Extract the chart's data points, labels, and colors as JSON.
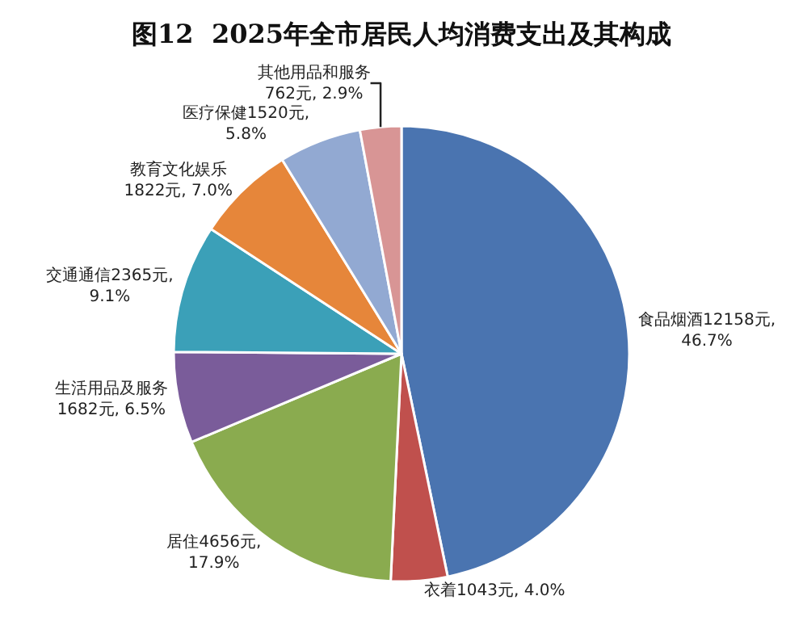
{
  "chart_data": {
    "type": "pie",
    "title": "图12  2025年全市居民人均消费支出及其构成",
    "categories": [
      "食品烟酒",
      "衣着",
      "居住",
      "生活用品及服务",
      "交通通信",
      "教育文化娱乐",
      "医疗保健",
      "其他用品和服务"
    ],
    "values": [
      12158,
      1043,
      4656,
      1682,
      2365,
      1822,
      1520,
      762
    ],
    "value_labels": [
      "12158元,\n46.7%",
      "1043元, 4.0%",
      "4656元,\n17.9%",
      "\n1682元, 6.5%",
      "2365元,\n9.1%",
      "\n1822元, 7.0%",
      "1520元,\n5.8%",
      "\n762元, 2.9%"
    ],
    "colors": [
      "#4a74b0",
      "#c0504d",
      "#8aab4f",
      "#7a5c9a",
      "#3ba0b8",
      "#e6863a",
      "#92a9d2",
      "#d89595"
    ],
    "legend": false
  }
}
